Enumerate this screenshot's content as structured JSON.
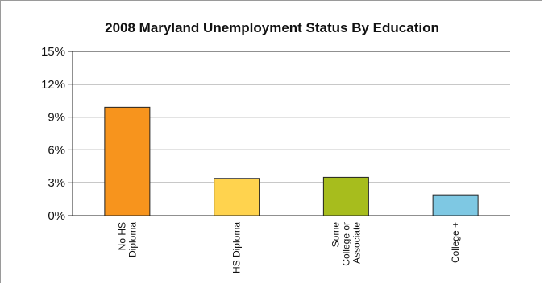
{
  "chart_data": {
    "type": "bar",
    "title": "2008 Maryland Unemployment Status By Education",
    "categories": [
      [
        "No HS",
        "Diploma"
      ],
      [
        "HS Diploma"
      ],
      [
        "Some",
        "College or",
        "Associate"
      ],
      [
        "College +"
      ]
    ],
    "values": [
      9.9,
      3.4,
      3.5,
      1.9
    ],
    "colors": [
      "#f7941d",
      "#ffd34e",
      "#a7bd1d",
      "#7ec8e3"
    ],
    "ylim": [
      0,
      15
    ],
    "yticks": [
      0,
      3,
      6,
      9,
      12,
      15
    ],
    "ytick_labels": [
      "0%",
      "3%",
      "6%",
      "9%",
      "12%",
      "15%"
    ],
    "grid": true,
    "xlabel": "",
    "ylabel": ""
  }
}
